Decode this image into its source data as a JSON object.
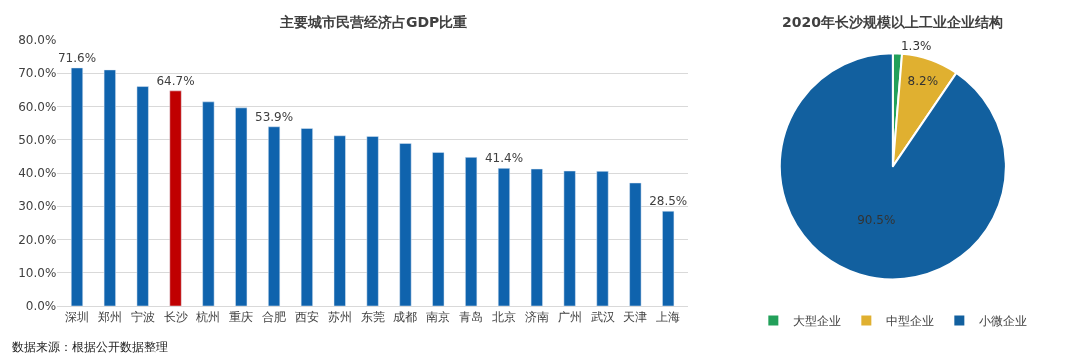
{
  "chart_data": [
    {
      "type": "bar",
      "title": "主要城市民营经济占GDP比重",
      "categories": [
        "深圳",
        "郑州",
        "宁波",
        "长沙",
        "杭州",
        "重庆",
        "合肥",
        "西安",
        "苏州",
        "东莞",
        "成都",
        "南京",
        "青岛",
        "北京",
        "济南",
        "广州",
        "武汉",
        "天津",
        "上海"
      ],
      "values": [
        71.6,
        71.0,
        66.0,
        64.7,
        61.4,
        59.6,
        53.9,
        53.4,
        51.2,
        51.0,
        48.9,
        46.2,
        44.7,
        41.4,
        41.2,
        40.6,
        40.5,
        37.0,
        28.5
      ],
      "value_labels": [
        "71.6%",
        null,
        null,
        "64.7%",
        null,
        null,
        "53.9%",
        null,
        null,
        null,
        null,
        null,
        null,
        "41.4%",
        null,
        null,
        null,
        null,
        "28.5%"
      ],
      "colors": [
        "#0f63ad",
        "#0f63ad",
        "#0f63ad",
        "#c00000",
        "#0f63ad",
        "#0f63ad",
        "#0f63ad",
        "#0f63ad",
        "#0f63ad",
        "#0f63ad",
        "#0f63ad",
        "#0f63ad",
        "#0f63ad",
        "#0f63ad",
        "#0f63ad",
        "#0f63ad",
        "#0f63ad",
        "#0f63ad",
        "#0f63ad"
      ],
      "ylim": [
        0,
        80
      ],
      "yticks": [
        {
          "value": 0,
          "label": "0.0%"
        },
        {
          "value": 10,
          "label": "10.0%"
        },
        {
          "value": 20,
          "label": "20.0%"
        },
        {
          "value": 30,
          "label": "30.0%"
        },
        {
          "value": 40,
          "label": "40.0%"
        },
        {
          "value": 50,
          "label": "50.0%"
        },
        {
          "value": 60,
          "label": "60.0%"
        },
        {
          "value": 70,
          "label": "70.0%"
        },
        {
          "value": 80,
          "label": "80.0%"
        }
      ],
      "grid": "y",
      "legend": false,
      "annotations": [
        "数据来源：根据公开数据整理"
      ]
    },
    {
      "type": "pie",
      "title": "2020年长沙规模以上工业企业结构",
      "categories": [
        "大型企业",
        "中型企业",
        "小微企业"
      ],
      "values": [
        1.3,
        8.2,
        90.5
      ],
      "colors": [
        "#22a05a",
        "#e0b030",
        "#12609f"
      ],
      "value_labels": [
        "1.3%",
        "8.2%",
        "90.5%"
      ],
      "legend": "bottom"
    }
  ]
}
